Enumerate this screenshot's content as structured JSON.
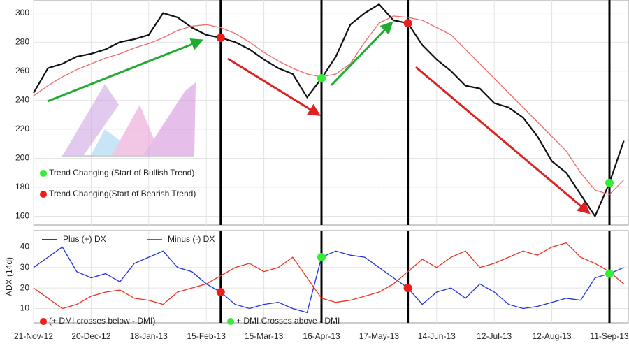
{
  "chart_data": [
    {
      "type": "line",
      "ylim": [
        154,
        309
      ],
      "yticks": [
        160,
        180,
        200,
        220,
        240,
        260,
        280,
        300
      ],
      "grid": true,
      "series": [
        {
          "color": "#111111",
          "values": [
            245,
            262,
            265,
            270,
            272,
            275,
            280,
            282,
            285,
            300,
            297,
            290,
            285,
            283,
            280,
            275,
            268,
            262,
            258,
            242,
            255,
            270,
            292,
            300,
            306,
            295,
            293,
            278,
            268,
            260,
            250,
            248,
            238,
            235,
            228,
            215,
            198,
            190,
            175,
            160,
            183,
            212
          ]
        },
        {
          "color": "#f06a6a",
          "values": [
            243,
            250,
            256,
            261,
            265,
            269,
            272,
            276,
            279,
            283,
            288,
            291,
            292,
            290,
            286,
            280,
            273,
            267,
            262,
            258,
            256,
            258,
            265,
            280,
            293,
            298,
            297,
            295,
            290,
            285,
            275,
            265,
            255,
            245,
            235,
            225,
            215,
            205,
            190,
            178,
            175,
            185
          ]
        }
      ],
      "markers": [
        {
          "index": 13,
          "color": "#ee1c1c"
        },
        {
          "index": 20,
          "color": "#33ee33"
        },
        {
          "index": 26,
          "color": "#ee1c1c"
        },
        {
          "index": 40,
          "color": "#33ee33"
        }
      ],
      "annotations": [
        "Trend Changing (Start of Bullish Trend)",
        "Trend Changing(Start of Bearish Trend)"
      ]
    },
    {
      "type": "line",
      "y_label": "ADX (14d)",
      "ylim": [
        3,
        48
      ],
      "yticks": [
        10,
        20,
        30,
        40
      ],
      "grid": true,
      "categories": [
        "21-Nov-12",
        null,
        null,
        null,
        "20-Dec-12",
        null,
        null,
        null,
        "18-Jan-13",
        null,
        null,
        null,
        "15-Feb-13",
        null,
        null,
        null,
        "15-Mar-13",
        null,
        null,
        null,
        "16-Apr-13",
        null,
        null,
        null,
        "17-May-13",
        null,
        null,
        null,
        "14-Jun-13",
        null,
        null,
        null,
        "12-Jul-13",
        null,
        null,
        null,
        "12-Aug-13",
        null,
        null,
        null,
        "11-Sep-13",
        null
      ],
      "series": [
        {
          "name": "Plus (+) DX",
          "color": "#2233dd",
          "values": [
            30,
            35,
            40,
            28,
            25,
            27,
            23,
            32,
            35,
            38,
            30,
            28,
            22,
            18,
            12,
            10,
            12,
            13,
            10,
            8,
            35,
            38,
            36,
            35,
            30,
            25,
            20,
            12,
            18,
            20,
            15,
            22,
            18,
            12,
            10,
            11,
            13,
            15,
            14,
            25,
            27,
            30
          ]
        },
        {
          "name": "Minus (-) DX",
          "color": "#ee3322",
          "values": [
            20,
            15,
            10,
            12,
            16,
            18,
            19,
            15,
            14,
            12,
            18,
            20,
            22,
            26,
            30,
            32,
            28,
            30,
            35,
            25,
            15,
            13,
            14,
            16,
            18,
            22,
            28,
            34,
            30,
            35,
            38,
            30,
            32,
            35,
            38,
            36,
            40,
            42,
            35,
            32,
            28,
            22
          ]
        }
      ],
      "markers": [
        {
          "index": 13,
          "color": "#ee1c1c"
        },
        {
          "index": 20,
          "color": "#33ee33"
        },
        {
          "index": 26,
          "color": "#ee1c1c"
        },
        {
          "index": 40,
          "color": "#33ee33"
        }
      ],
      "annotations": [
        "(+ DMI crosses below - DMI)",
        "+ DMI Crosses above - DMI"
      ]
    }
  ]
}
